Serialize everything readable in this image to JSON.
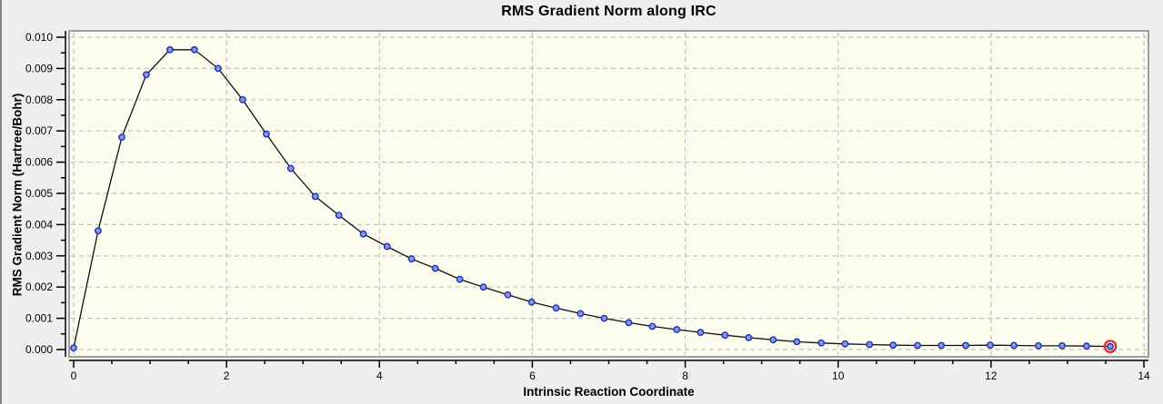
{
  "window": {
    "background_color": "#efefef",
    "left_border_color": "#83838d"
  },
  "chart_data": {
    "type": "line",
    "title": "RMS Gradient Norm along IRC",
    "xlabel": "Intrinsic Reaction Coordinate",
    "ylabel": "RMS Gradient Norm (Hartree/Bohr)",
    "xlim": [
      0,
      14
    ],
    "ylim": [
      0.0,
      0.01
    ],
    "x_major_ticks": [
      0,
      2,
      4,
      6,
      8,
      10,
      12,
      14
    ],
    "x_tick_labels": [
      "0",
      "2",
      "4",
      "6",
      "8",
      "10",
      "12",
      "14"
    ],
    "x_minor_step": 0.5,
    "y_major_ticks": [
      0.0,
      0.001,
      0.002,
      0.003,
      0.004,
      0.005,
      0.006,
      0.007,
      0.008,
      0.009,
      0.01
    ],
    "y_tick_labels": [
      "0.000",
      "0.001",
      "0.002",
      "0.003",
      "0.004",
      "0.005",
      "0.006",
      "0.007",
      "0.008",
      "0.009",
      "0.010"
    ],
    "y_minor_step": 0.0005,
    "grid": "dashed-on-major-ticks",
    "legend": "none",
    "series": [
      {
        "name": "RMS gradient norm",
        "marker": "circle",
        "x": [
          0.0,
          0.32,
          0.63,
          0.95,
          1.26,
          1.58,
          1.89,
          2.21,
          2.52,
          2.84,
          3.16,
          3.47,
          3.79,
          4.1,
          4.42,
          4.73,
          5.05,
          5.36,
          5.68,
          5.99,
          6.31,
          6.63,
          6.94,
          7.26,
          7.57,
          7.89,
          8.2,
          8.52,
          8.83,
          9.15,
          9.46,
          9.78,
          10.09,
          10.41,
          10.72,
          11.04,
          11.35,
          11.67,
          11.99,
          12.3,
          12.62,
          12.93,
          13.25,
          13.56
        ],
        "y": [
          5e-05,
          0.0038,
          0.0068,
          0.0088,
          0.0096,
          0.0096,
          0.009,
          0.008,
          0.0069,
          0.0058,
          0.0049,
          0.0043,
          0.0037,
          0.0033,
          0.0029,
          0.0026,
          0.00225,
          0.002,
          0.00175,
          0.00152,
          0.00133,
          0.00115,
          0.001,
          0.00086,
          0.00074,
          0.00064,
          0.00055,
          0.00046,
          0.00038,
          0.00031,
          0.00025,
          0.00021,
          0.00018,
          0.00016,
          0.00014,
          0.00013,
          0.00013,
          0.00013,
          0.00014,
          0.00013,
          0.00012,
          0.00012,
          0.00011,
          0.0001
        ]
      }
    ],
    "highlighted_point": {
      "series": 0,
      "index": 43,
      "style": "red-ring"
    }
  },
  "style": {
    "plot_background": "#fcfcee",
    "plot_border": "#9aa0a0",
    "grid_color": "#c0c0c0",
    "line_color": "#101010",
    "marker_fill": "#8896e8",
    "marker_edge": "#1c2fae",
    "highlight_ring": "#e03131",
    "axis_color": "#000000"
  }
}
